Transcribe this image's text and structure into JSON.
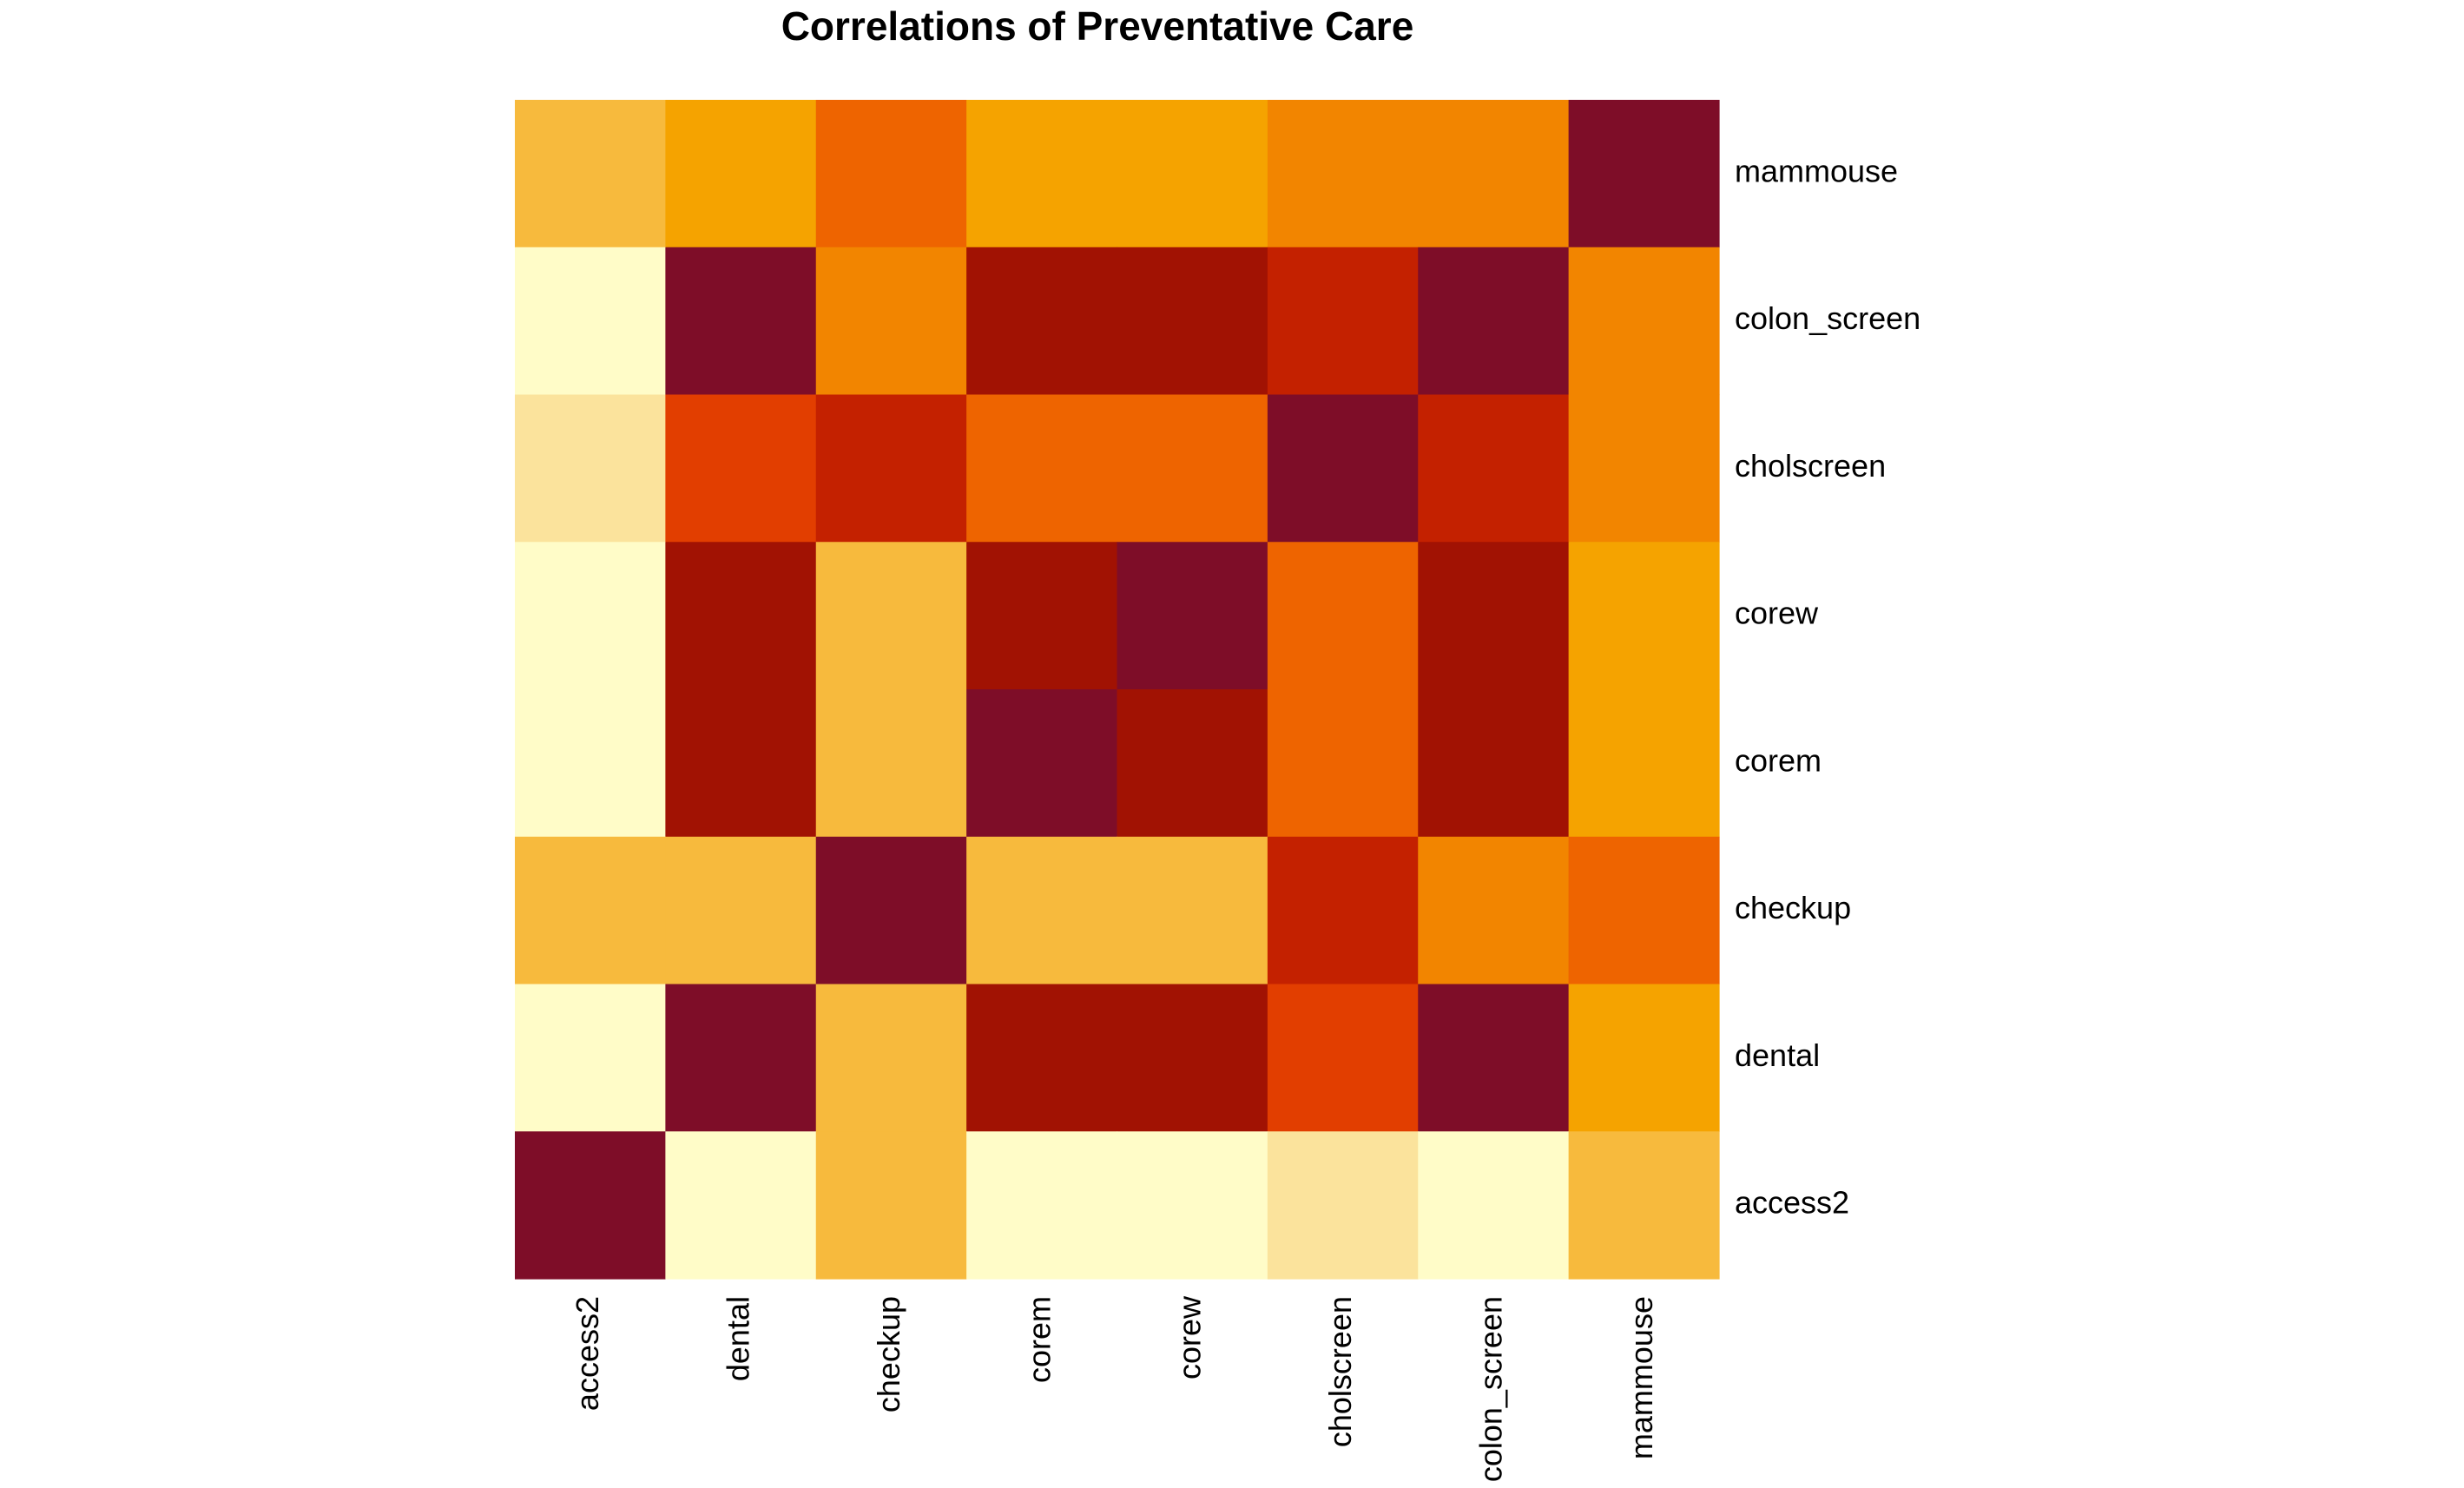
{
  "chart_data": {
    "type": "heatmap",
    "title": "Correlations of Preventative Care",
    "x_labels": [
      "access2",
      "dental",
      "checkup",
      "corem",
      "corew",
      "cholscreen",
      "colon_screen",
      "mammouse"
    ],
    "y_labels_top_to_bottom": [
      "mammouse",
      "colon_screen",
      "cholscreen",
      "corew",
      "corem",
      "checkup",
      "dental",
      "access2"
    ],
    "color_scale": [
      "#FFFCC8",
      "#FBE39C",
      "#F7BA3D",
      "#F5A300",
      "#F28500",
      "#EE6400",
      "#E23E00",
      "#C42100",
      "#A11203",
      "#7E0D28"
    ],
    "color_levels_note": "level 0 = lightest yellow, level 9 = darkest red",
    "levels": [
      [
        2,
        3,
        5,
        3,
        3,
        4,
        4,
        9
      ],
      [
        0,
        9,
        4,
        8,
        8,
        7,
        9,
        4
      ],
      [
        1,
        6,
        7,
        5,
        5,
        9,
        7,
        4
      ],
      [
        0,
        8,
        2,
        8,
        9,
        5,
        8,
        3
      ],
      [
        0,
        8,
        2,
        9,
        8,
        5,
        8,
        3
      ],
      [
        2,
        2,
        9,
        2,
        2,
        7,
        4,
        5
      ],
      [
        0,
        9,
        2,
        8,
        8,
        6,
        9,
        3
      ],
      [
        9,
        0,
        2,
        0,
        0,
        1,
        0,
        2
      ]
    ],
    "legend": "none",
    "grid": false
  }
}
